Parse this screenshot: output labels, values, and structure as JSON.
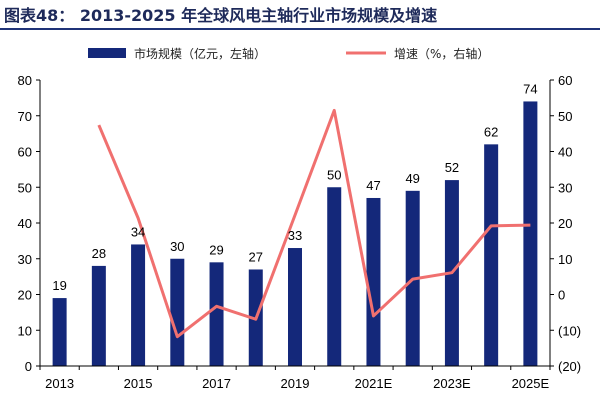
{
  "title": "图表48：  2013-2025 年全球风电主轴行业市场规模及增速",
  "colors": {
    "bar": "#14287a",
    "line": "#f0706f",
    "axis": "#000000",
    "title_rule": "#1f3378"
  },
  "chart_data": {
    "type": "bar",
    "categories": [
      "2013",
      "2014",
      "2015",
      "2016",
      "2017",
      "2018",
      "2019",
      "2020",
      "2021E",
      "2022E",
      "2023E",
      "2024E",
      "2025E"
    ],
    "x_tick_labels": [
      "2013",
      "2015",
      "2017",
      "2019",
      "2021E",
      "2023E",
      "2025E"
    ],
    "series": [
      {
        "name": "市场规模（亿元，左轴）",
        "type": "bar",
        "axis": "left",
        "values": [
          19,
          28,
          34,
          30,
          29,
          27,
          33,
          50,
          47,
          49,
          52,
          62,
          74
        ]
      },
      {
        "name": "增速（%，右轴）",
        "type": "line",
        "axis": "right",
        "values": [
          null,
          47.4,
          21.4,
          -11.8,
          -3.3,
          -6.9,
          22.2,
          51.5,
          -6.0,
          4.3,
          6.1,
          19.2,
          19.4
        ]
      }
    ],
    "left_axis": {
      "min": 0,
      "max": 80,
      "ticks": [
        "0",
        "10",
        "20",
        "30",
        "40",
        "50",
        "60",
        "70",
        "80"
      ]
    },
    "right_axis": {
      "min": -20,
      "max": 60,
      "ticks": [
        "(20)",
        "(10)",
        "0",
        "10",
        "20",
        "30",
        "40",
        "50",
        "60"
      ]
    },
    "data_labels": [
      "19",
      "28",
      "34",
      "30",
      "29",
      "27",
      "33",
      "50",
      "47",
      "49",
      "52",
      "62",
      "74"
    ],
    "legend": [
      "市场规模（亿元，左轴）",
      "增速（%，右轴）"
    ],
    "legend_position": "top",
    "grid": false
  }
}
